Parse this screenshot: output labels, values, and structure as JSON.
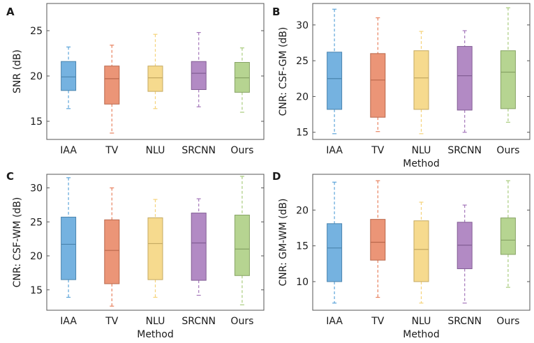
{
  "colors": {
    "IAA": "#5DA5DA",
    "TV": "#E8825F",
    "NLU": "#F5D37A",
    "SRCNN": "#A476BA",
    "Ours": "#A9CC7E"
  },
  "chart_data": [
    {
      "type": "box",
      "panel_label": "A",
      "xlabel": "",
      "ylabel": "SNR (dB)",
      "ylim": [
        13,
        28
      ],
      "yticks": [
        15,
        20,
        25
      ],
      "categories": [
        "IAA",
        "TV",
        "NLU",
        "SRCNN",
        "Ours"
      ],
      "boxes": [
        {
          "min": 16.4,
          "q1": 18.4,
          "median": 19.9,
          "q3": 21.6,
          "max": 23.2
        },
        {
          "min": 13.7,
          "q1": 16.9,
          "median": 19.7,
          "q3": 21.1,
          "max": 23.4
        },
        {
          "min": 16.4,
          "q1": 18.3,
          "median": 19.8,
          "q3": 21.1,
          "max": 24.6
        },
        {
          "min": 16.6,
          "q1": 18.5,
          "median": 20.3,
          "q3": 21.6,
          "max": 24.8
        },
        {
          "min": 16.0,
          "q1": 18.2,
          "median": 19.8,
          "q3": 21.5,
          "max": 23.1
        }
      ]
    },
    {
      "type": "box",
      "panel_label": "B",
      "xlabel": "Method",
      "ylabel": "CNR: CSF-GM (dB)",
      "ylim": [
        14,
        33
      ],
      "yticks": [
        15,
        20,
        25,
        30
      ],
      "categories": [
        "IAA",
        "TV",
        "NLU",
        "SRCNN",
        "Ours"
      ],
      "boxes": [
        {
          "min": 14.8,
          "q1": 18.2,
          "median": 22.5,
          "q3": 26.2,
          "max": 32.2
        },
        {
          "min": 15.1,
          "q1": 17.1,
          "median": 22.3,
          "q3": 26.0,
          "max": 31.0
        },
        {
          "min": 14.8,
          "q1": 18.2,
          "median": 22.6,
          "q3": 26.4,
          "max": 29.1
        },
        {
          "min": 15.0,
          "q1": 18.1,
          "median": 22.9,
          "q3": 27.0,
          "max": 29.2
        },
        {
          "min": 16.4,
          "q1": 18.3,
          "median": 23.4,
          "q3": 26.4,
          "max": 32.4
        }
      ]
    },
    {
      "type": "box",
      "panel_label": "C",
      "xlabel": "Method",
      "ylabel": "CNR: CSF-WM (dB)",
      "ylim": [
        12,
        32
      ],
      "yticks": [
        15,
        20,
        25,
        30
      ],
      "categories": [
        "IAA",
        "TV",
        "NLU",
        "SRCNN",
        "Ours"
      ],
      "boxes": [
        {
          "min": 13.9,
          "q1": 16.5,
          "median": 21.7,
          "q3": 25.7,
          "max": 31.5
        },
        {
          "min": 12.6,
          "q1": 15.9,
          "median": 20.8,
          "q3": 25.3,
          "max": 30.0
        },
        {
          "min": 13.9,
          "q1": 16.5,
          "median": 21.8,
          "q3": 25.6,
          "max": 28.3
        },
        {
          "min": 14.2,
          "q1": 16.4,
          "median": 21.9,
          "q3": 26.3,
          "max": 28.4
        },
        {
          "min": 12.8,
          "q1": 17.1,
          "median": 21.0,
          "q3": 26.0,
          "max": 31.7
        }
      ]
    },
    {
      "type": "box",
      "panel_label": "D",
      "xlabel": "Method",
      "ylabel": "CNR: GM-WM (dB)",
      "ylim": [
        6,
        25
      ],
      "yticks": [
        10,
        15,
        20
      ],
      "categories": [
        "IAA",
        "TV",
        "NLU",
        "SRCNN",
        "Ours"
      ],
      "boxes": [
        {
          "min": 7.0,
          "q1": 10.0,
          "median": 14.7,
          "q3": 18.1,
          "max": 23.9
        },
        {
          "min": 7.8,
          "q1": 13.0,
          "median": 15.5,
          "q3": 18.7,
          "max": 24.1
        },
        {
          "min": 7.0,
          "q1": 10.0,
          "median": 14.5,
          "q3": 18.5,
          "max": 21.1
        },
        {
          "min": 7.0,
          "q1": 11.8,
          "median": 15.1,
          "q3": 18.3,
          "max": 20.7
        },
        {
          "min": 9.2,
          "q1": 13.8,
          "median": 15.8,
          "q3": 18.9,
          "max": 24.1
        }
      ]
    }
  ]
}
